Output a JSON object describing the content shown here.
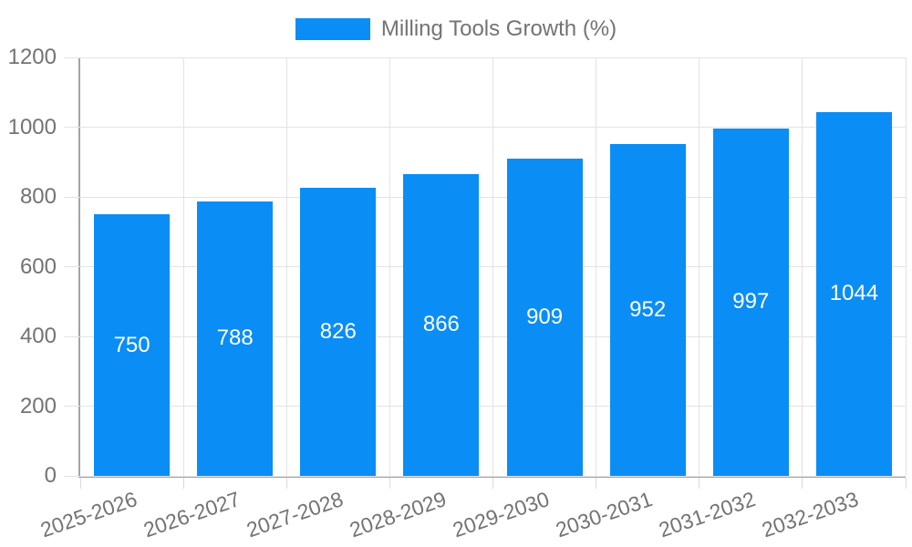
{
  "chart_data": {
    "type": "bar",
    "title": "",
    "categories": [
      "2025-2026",
      "2026-2027",
      "2027-2028",
      "2028-2029",
      "2029-2030",
      "2030-2031",
      "2031-2032",
      "2032-2033"
    ],
    "series": [
      {
        "name": "Milling Tools Growth (%)",
        "values": [
          750,
          788,
          826,
          866,
          909,
          952,
          997,
          1044
        ]
      }
    ],
    "xlabel": "",
    "ylabel": "",
    "ylim": [
      0,
      1200
    ],
    "yticks": [
      0,
      200,
      400,
      600,
      800,
      1000,
      1200
    ],
    "grid": true,
    "legend_position": "top",
    "value_labels_shown": true,
    "x_label_rotation_deg": -19,
    "colors": {
      "bar": "#0a8df5",
      "grid": "#e3e3e3",
      "tick": "#dadada",
      "axis": "#a3a3a3",
      "label_text": "#737373",
      "value_text": "#ffffff",
      "background": "#ffffff"
    }
  }
}
